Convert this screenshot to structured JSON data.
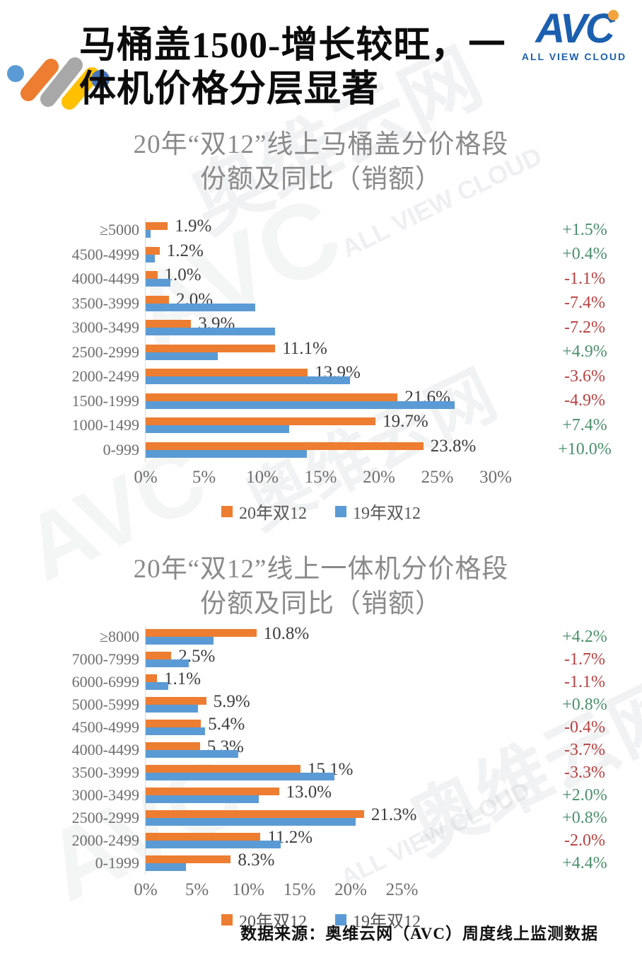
{
  "page": {
    "title_line1": "马桶盖1500-增长较旺，一",
    "title_line2": "体机价格分层显著",
    "footer": "数据来源：奥维云网（AVC）周度线上监测数据",
    "logo": {
      "text": "AVC",
      "subtext": "ALL VIEW CLOUD"
    },
    "watermark": {
      "name": "奥维云网",
      "cloud": "ALL VIEW CLOUD",
      "avc": "AVC"
    }
  },
  "colors": {
    "bar_2020": "#ED7D31",
    "bar_2019": "#5B9BD5",
    "positive": "#4A8F6D",
    "negative": "#B94040",
    "chart_title": "#8A8A8A",
    "logo_blue": "#1B5FAF",
    "logo_dot_orange": "#F2A33C"
  },
  "chart_data": [
    {
      "type": "bar",
      "orientation": "horizontal",
      "title_line1": "20年“双12”线上马桶盖分价格段",
      "title_line2": "份额及同比（销额）",
      "unit": "% share of sales value",
      "categories": [
        "≥5000",
        "4500-4999",
        "4000-4499",
        "3500-3999",
        "3000-3499",
        "2500-2999",
        "2000-2499",
        "1500-1999",
        "1000-1499",
        "0-999"
      ],
      "series": [
        {
          "name": "20年双12",
          "values": [
            1.9,
            1.2,
            1.0,
            2.0,
            3.9,
            11.1,
            13.9,
            21.6,
            19.7,
            23.8
          ],
          "labels": [
            "1.9%",
            "1.2%",
            "1.0%",
            "2.0%",
            "3.9%",
            "11.1%",
            "13.9%",
            "21.6%",
            "19.7%",
            "23.8%"
          ]
        },
        {
          "name": "19年双12",
          "values": [
            0.4,
            0.8,
            2.1,
            9.4,
            11.1,
            6.2,
            17.5,
            26.5,
            12.3,
            13.8
          ],
          "labels": [],
          "note": "values estimated from bar lengths / share-change column"
        }
      ],
      "share_change_vs_py": [
        "+1.5%",
        "+0.4%",
        "-1.1%",
        "-7.4%",
        "-7.2%",
        "+4.9%",
        "-3.6%",
        "-4.9%",
        "+7.4%",
        "+10.0%"
      ],
      "x_ticks": [
        "0%",
        "5%",
        "10%",
        "15%",
        "20%",
        "25%",
        "30%"
      ],
      "x_tick_values": [
        0,
        5,
        10,
        15,
        20,
        25,
        30
      ],
      "x_max": 30,
      "legend_position": "bottom"
    },
    {
      "type": "bar",
      "orientation": "horizontal",
      "title_line1": "20年“双12”线上一体机分价格段",
      "title_line2": "份额及同比（销额）",
      "unit": "% share of sales value",
      "categories": [
        "≥8000",
        "7000-7999",
        "6000-6999",
        "5000-5999",
        "4500-4999",
        "4000-4499",
        "3500-3999",
        "3000-3499",
        "2500-2999",
        "2000-2499",
        "0-1999"
      ],
      "series": [
        {
          "name": "20年双12",
          "values": [
            10.8,
            2.5,
            1.1,
            5.9,
            5.4,
            5.3,
            15.1,
            13.0,
            21.3,
            11.2,
            8.3
          ],
          "labels": [
            "10.8%",
            "2.5%",
            "1.1%",
            "5.9%",
            "5.4%",
            "5.3%",
            "15.1%",
            "13.0%",
            "21.3%",
            "11.2%",
            "8.3%"
          ]
        },
        {
          "name": "19年双12",
          "values": [
            6.6,
            4.2,
            2.2,
            5.1,
            5.8,
            9.0,
            18.4,
            11.0,
            20.5,
            13.2,
            3.9
          ],
          "labels": [],
          "note": "values estimated from bar lengths / share-change column"
        }
      ],
      "share_change_vs_py": [
        "+4.2%",
        "-1.7%",
        "-1.1%",
        "+0.8%",
        "-0.4%",
        "-3.7%",
        "-3.3%",
        "+2.0%",
        "+0.8%",
        "-2.0%",
        "+4.4%"
      ],
      "x_ticks": [
        "0%",
        "5%",
        "10%",
        "15%",
        "20%",
        "25%"
      ],
      "x_tick_values": [
        0,
        5,
        10,
        15,
        20,
        25
      ],
      "x_max": 25,
      "legend_position": "bottom"
    }
  ]
}
